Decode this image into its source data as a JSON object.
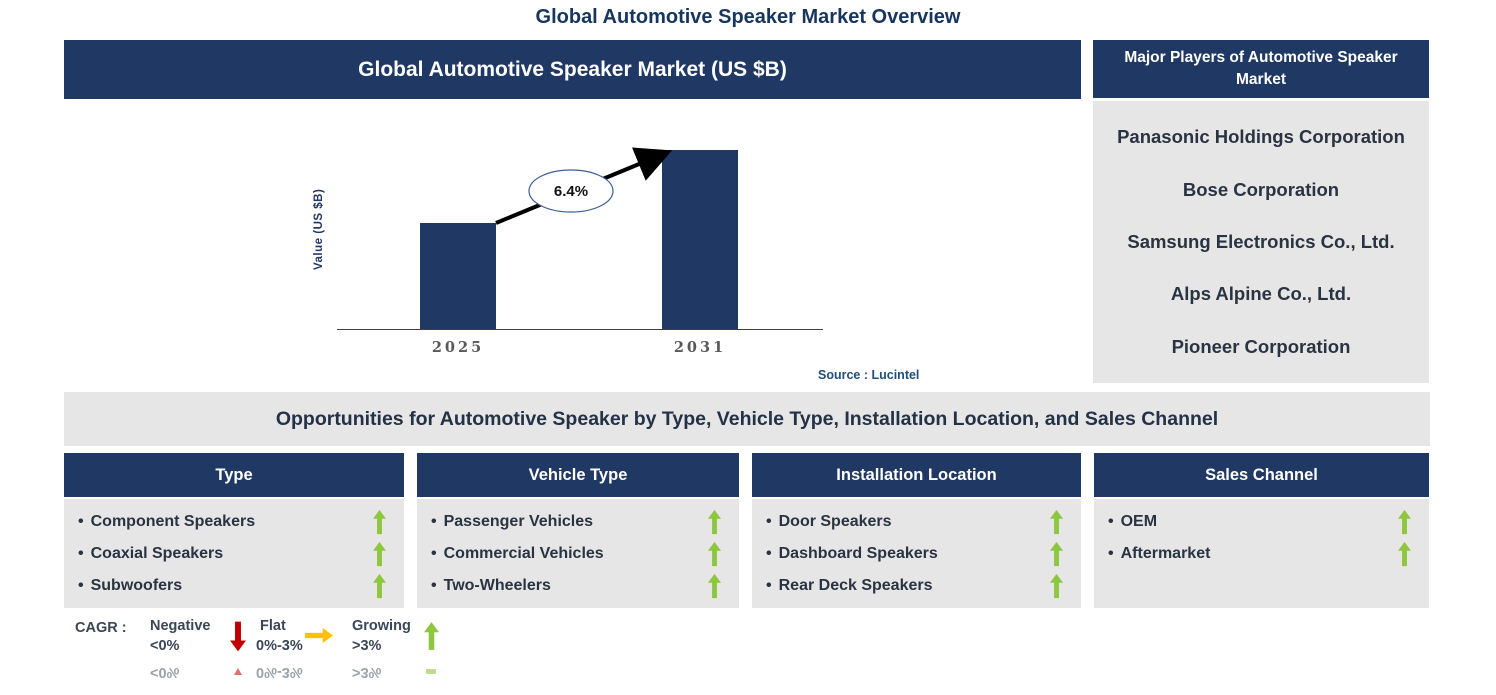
{
  "page_title": "Global Automotive Speaker Market Overview",
  "chart_section": {
    "banner_title": "Global Automotive Speaker Market (US $B)",
    "source": "Source : Lucintel"
  },
  "chart_data": {
    "type": "bar",
    "title": "Global Automotive Speaker Market (US $B)",
    "categories": [
      "2025",
      "2031"
    ],
    "relative_heights": [
      0.59,
      1.0
    ],
    "values_note": "absolute bar values are not labeled on the chart; 2031 bar is about 1.7x the 2025 bar",
    "cagr_label": "6.4%",
    "ylabel": "Value (US $B)",
    "xlabel": "",
    "grid": "off",
    "bar_color": "#203864"
  },
  "major_players": {
    "title": "Major Players of Automotive Speaker Market",
    "companies": [
      "Panasonic Holdings Corporation",
      "Bose Corporation",
      "Samsung Electronics Co., Ltd.",
      "Alps Alpine Co., Ltd.",
      "Pioneer Corporation"
    ]
  },
  "opportunities": {
    "banner": "Opportunities for Automotive Speaker by Type, Vehicle Type, Installation Location, and Sales Channel",
    "columns": [
      {
        "header": "Type",
        "items": [
          "Component Speakers",
          "Coaxial Speakers",
          "Subwoofers"
        ],
        "trends": [
          "growing",
          "growing",
          "growing"
        ]
      },
      {
        "header": "Vehicle Type",
        "items": [
          "Passenger Vehicles",
          "Commercial Vehicles",
          "Two-Wheelers"
        ],
        "trends": [
          "growing",
          "growing",
          "growing"
        ]
      },
      {
        "header": "Installation Location",
        "items": [
          "Door Speakers",
          "Dashboard Speakers",
          "Rear Deck Speakers"
        ],
        "trends": [
          "growing",
          "growing",
          "growing"
        ]
      },
      {
        "header": "Sales Channel",
        "items": [
          "OEM",
          "Aftermarket"
        ],
        "trends": [
          "growing",
          "growing"
        ]
      }
    ]
  },
  "legend": {
    "label": "CAGR :",
    "items": [
      {
        "name": "Negative",
        "range": "<0%",
        "icon": "red-down-arrow",
        "color": "#C00000"
      },
      {
        "name": "Flat",
        "range": "0%-3%",
        "icon": "orange-right-arrow",
        "color": "#FFC000"
      },
      {
        "name": "Growing",
        "range": ">3%",
        "icon": "green-up-arrow",
        "color": "#92D050"
      }
    ]
  },
  "glyphs": {
    "bullet": "•"
  },
  "colors": {
    "navy": "#1F3864",
    "panel_gray": "#E7E6E6",
    "green": "#8DC63F",
    "red": "#C00000",
    "orange": "#FFC000",
    "text_dark": "#2A3342",
    "axis_gray": "#595959",
    "source_navy": "#1F4E79",
    "bar": "#203864"
  }
}
